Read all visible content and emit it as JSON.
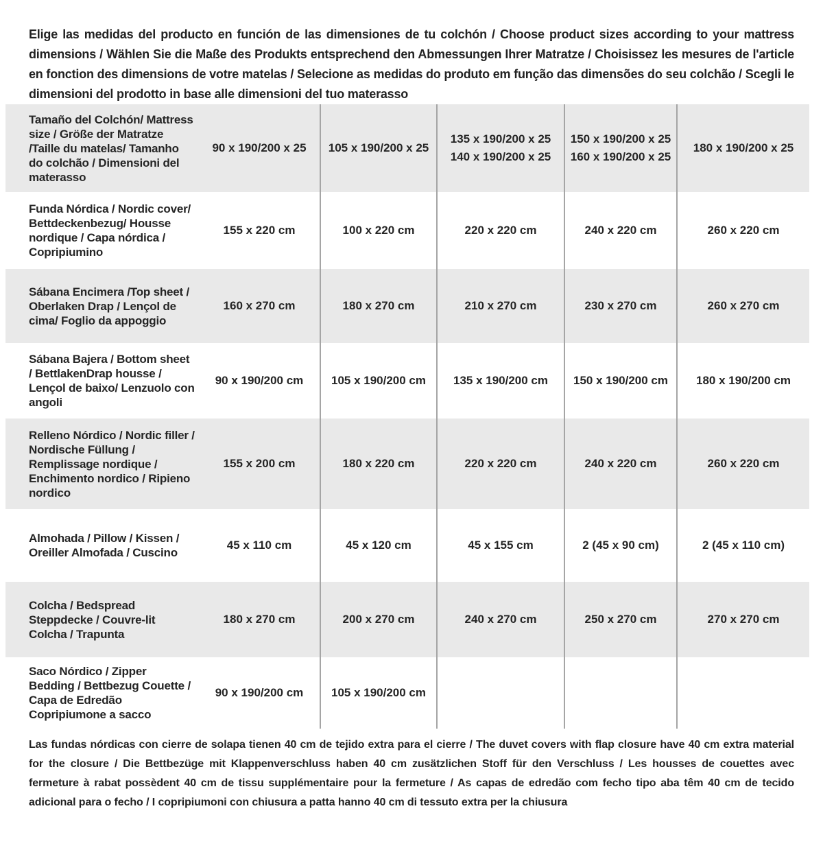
{
  "page": {
    "intro": "Elige las medidas del producto en función de las dimensiones de tu colchón / Choose product sizes according to your mattress dimensions / Wählen Sie die Maße des Produkts entsprechend den Abmessungen Ihrer Matratze / Choisissez les mesures de l'article en fonction des dimensions de votre matelas / Selecione as medidas do produto em função das dimensões do seu colchão / Scegli le dimensioni del prodotto in base alle dimensioni del tuo materasso",
    "footnote": "Las fundas nórdicas con cierre de solapa tienen 40 cm de tejido extra para el cierre / The duvet covers with flap closure have 40 cm extra material for the closure / Die Bettbezüge mit Klappenverschluss haben 40 cm zusätzlichen Stoff für den Verschluss / Les housses de couettes avec fermeture à rabat possèdent 40 cm de tissu supplémentaire pour la fermeture / As capas de edredão com fecho tipo aba têm 40 cm de tecido adicional para o fecho / I copripiumoni con chiusura a patta hanno 40 cm di tessuto extra per la chiusura"
  },
  "style": {
    "shaded_row_color": "#e9e9e9",
    "divider_color": "#a5a5a5",
    "text_color": "#222222"
  },
  "table": {
    "rows": [
      {
        "name": "mattress-size",
        "label": "Tamaño del Colchón/ Mattress size / Größe der Matratze /Taille du matelas/ Tamanho do colchão / Dimensioni del materasso",
        "values": [
          "90 x 190/200 x 25",
          "105 x 190/200 x 25",
          "135 x 190/200 x 25\n140 x 190/200 x 25",
          "150 x 190/200 x 25\n160 x 190/200 x 25",
          "180 x 190/200 x 25"
        ]
      },
      {
        "name": "nordic-cover",
        "label": "Funda Nórdica /  Nordic cover/ Bettdeckenbezug/ Housse nordique  / Capa nórdica / Copripiumino",
        "values": [
          "155 x 220 cm",
          "100 x 220 cm",
          "220 x 220 cm",
          "240 x 220 cm",
          "260 x 220 cm"
        ]
      },
      {
        "name": "top-sheet",
        "label": "Sábana Encimera /Top sheet / Oberlaken Drap / Lençol de cima/ Foglio da appoggio",
        "values": [
          "160 x 270 cm",
          "180 x 270 cm",
          "210 x 270 cm",
          "230 x 270 cm",
          "260 x 270 cm"
        ]
      },
      {
        "name": "bottom-sheet",
        "label": "Sábana Bajera / Bottom sheet / BettlakenDrap housse / Lençol de baixo/ Lenzuolo con angoli",
        "values": [
          "90 x 190/200 cm",
          "105 x 190/200 cm",
          "135 x 190/200 cm",
          "150 x 190/200 cm",
          "180 x 190/200 cm"
        ]
      },
      {
        "name": "nordic-filler",
        "label": "Relleno Nórdico / Nordic filler / Nordische Füllung / Remplissage nordique / Enchimento nordico / Ripieno nordico",
        "values": [
          "155 x 200 cm",
          "180 x 220 cm",
          "220 x 220 cm",
          "240 x 220 cm",
          "260 x 220 cm"
        ]
      },
      {
        "name": "pillow",
        "label": "Almohada  / Pillow / Kissen / Oreiller Almofada / Cuscino",
        "values": [
          "45 x 110 cm",
          "45 x 120 cm",
          "45 x 155 cm",
          "2 (45 x 90 cm)",
          "2 (45 x 110 cm)"
        ]
      },
      {
        "name": "bedspread",
        "label": "Colcha / Bedspread Steppdecke / Couvre-lit Colcha / Trapunta",
        "values": [
          "180 x 270 cm",
          "200 x 270 cm",
          "240 x 270 cm",
          "250 x 270 cm",
          "270 x 270 cm"
        ]
      },
      {
        "name": "zipper-bedding",
        "label": "Saco Nórdico / Zipper Bedding / Bettbezug Couette  / Capa de Edredão Copripiumone a sacco",
        "values": [
          "90 x 190/200 cm",
          "105 x 190/200 cm",
          "",
          "",
          ""
        ]
      }
    ]
  }
}
